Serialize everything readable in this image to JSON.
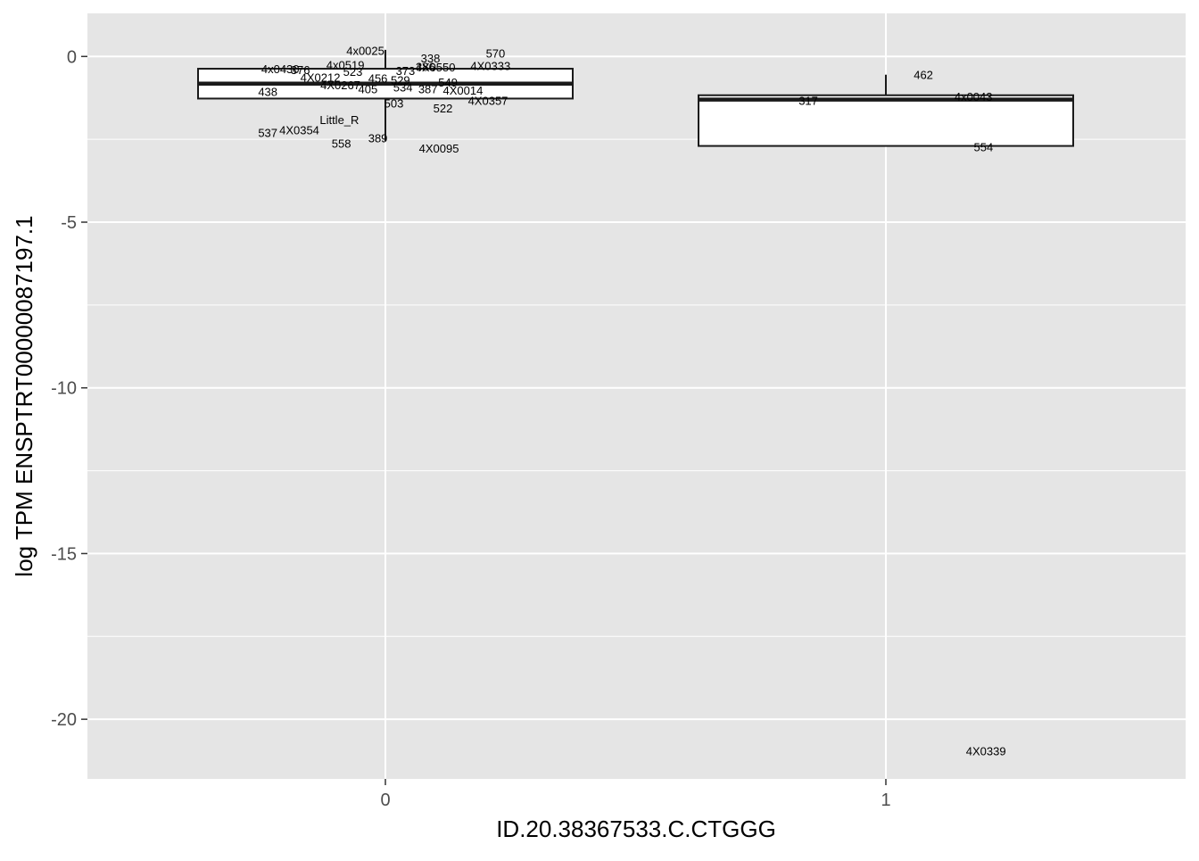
{
  "chart_data": {
    "type": "box",
    "title": "",
    "xlabel": "ID.20.38367533.C.CTGGG",
    "ylabel": "log TPM ENSPTRT00000087197.1",
    "ylim": [
      -21.8,
      1.3
    ],
    "y_ticks": [
      0,
      -5,
      -10,
      -15,
      -20
    ],
    "y_tick_labels": [
      "0",
      "-5",
      "-10",
      "-15",
      "-20"
    ],
    "categories": [
      "0",
      "1"
    ],
    "grid": true,
    "legend": "none",
    "colors": {
      "panel": "#e5e5e5",
      "grid": "#ffffff",
      "box_fill": "#ffffff",
      "box_stroke": "#1a1a1a"
    },
    "boxes": [
      {
        "category": "0",
        "q1": -1.27,
        "median": -0.82,
        "q3": -0.37,
        "whisker_low": -2.55,
        "whisker_high": 0.2
      },
      {
        "category": "1",
        "q1": -2.7,
        "median": -1.3,
        "q3": -1.17,
        "whisker_low": -2.7,
        "whisker_high": -0.55
      }
    ],
    "points": [
      {
        "label": "4x0025",
        "group": "0",
        "dx": -0.04,
        "y": 0.18
      },
      {
        "label": "338",
        "group": "0",
        "dx": 0.09,
        "y": -0.05
      },
      {
        "label": "570",
        "group": "0",
        "dx": 0.22,
        "y": 0.1
      },
      {
        "label": "4x0519",
        "group": "0",
        "dx": -0.08,
        "y": -0.25
      },
      {
        "label": "4x0430",
        "group": "0",
        "dx": -0.21,
        "y": -0.37
      },
      {
        "label": "376",
        "group": "0",
        "dx": -0.17,
        "y": -0.4
      },
      {
        "label": "4X0333",
        "group": "0",
        "dx": 0.21,
        "y": -0.27
      },
      {
        "label": "4X0550",
        "group": "0",
        "dx": 0.1,
        "y": -0.32
      },
      {
        "label": "386",
        "group": "0",
        "dx": 0.08,
        "y": -0.3
      },
      {
        "label": "373",
        "group": "0",
        "dx": 0.04,
        "y": -0.42
      },
      {
        "label": "523",
        "group": "0",
        "dx": -0.065,
        "y": -0.45
      },
      {
        "label": "4X0212",
        "group": "0",
        "dx": -0.13,
        "y": -0.63
      },
      {
        "label": "4X0267",
        "group": "0",
        "dx": -0.09,
        "y": -0.85
      },
      {
        "label": "456",
        "group": "0",
        "dx": -0.015,
        "y": -0.65
      },
      {
        "label": "529",
        "group": "0",
        "dx": 0.03,
        "y": -0.7
      },
      {
        "label": "549",
        "group": "0",
        "dx": 0.125,
        "y": -0.77
      },
      {
        "label": "405",
        "group": "0",
        "dx": -0.035,
        "y": -0.97
      },
      {
        "label": "534",
        "group": "0",
        "dx": 0.035,
        "y": -0.92
      },
      {
        "label": "387",
        "group": "0",
        "dx": 0.085,
        "y": -0.97
      },
      {
        "label": "4X0014",
        "group": "0",
        "dx": 0.155,
        "y": -1.02
      },
      {
        "label": "438",
        "group": "0",
        "dx": -0.235,
        "y": -1.05
      },
      {
        "label": "503",
        "group": "0",
        "dx": 0.017,
        "y": -1.4
      },
      {
        "label": "4X0357",
        "group": "0",
        "dx": 0.205,
        "y": -1.32
      },
      {
        "label": "522",
        "group": "0",
        "dx": 0.115,
        "y": -1.55
      },
      {
        "label": "Little_R",
        "group": "0",
        "dx": -0.092,
        "y": -1.9
      },
      {
        "label": "537",
        "group": "0",
        "dx": -0.235,
        "y": -2.3
      },
      {
        "label": "4X0354",
        "group": "0",
        "dx": -0.172,
        "y": -2.22
      },
      {
        "label": "389",
        "group": "0",
        "dx": -0.015,
        "y": -2.45
      },
      {
        "label": "558",
        "group": "0",
        "dx": -0.088,
        "y": -2.62
      },
      {
        "label": "4X0095",
        "group": "0",
        "dx": 0.107,
        "y": -2.77
      },
      {
        "label": "462",
        "group": "1",
        "dx": 0.075,
        "y": -0.55
      },
      {
        "label": "317",
        "group": "1",
        "dx": -0.155,
        "y": -1.32
      },
      {
        "label": "4x0043",
        "group": "1",
        "dx": 0.175,
        "y": -1.2
      },
      {
        "label": "554",
        "group": "1",
        "dx": 0.195,
        "y": -2.73
      },
      {
        "label": "4X0339",
        "group": "1",
        "dx": 0.2,
        "y": -20.95
      }
    ]
  }
}
